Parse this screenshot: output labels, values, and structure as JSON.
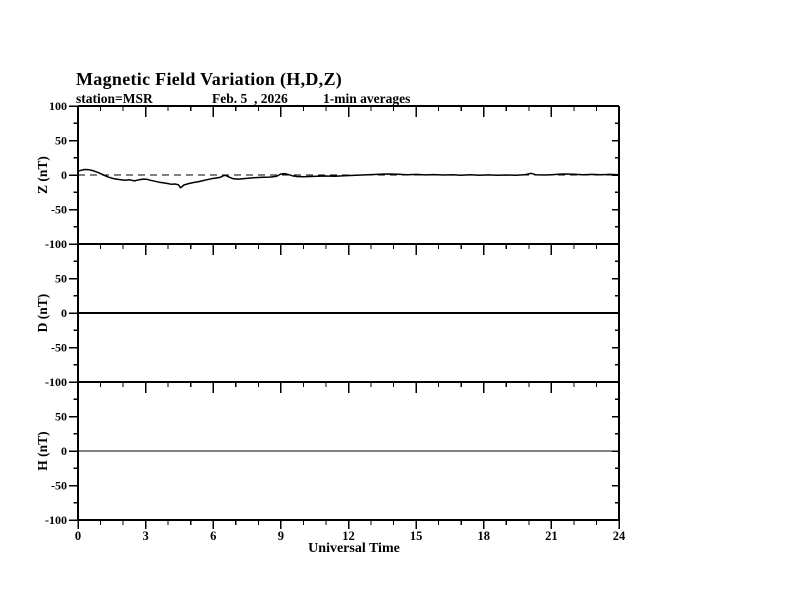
{
  "page_title": "Magnetic Field Variation (H,D,Z)",
  "colors": {
    "foreground": "#000000",
    "background": "#ffffff"
  },
  "chart_data": {
    "type": "line",
    "title": "Magnetic Field Variation (H,D,Z)",
    "subtitle": {
      "station": "station=MSR",
      "date": "Feb. 5  , 2026",
      "averaging": "1-min averages"
    },
    "xlabel": "Universal Time",
    "xlim": [
      0,
      24
    ],
    "x_major_ticks": [
      0,
      3,
      6,
      9,
      12,
      15,
      18,
      21,
      24
    ],
    "x_major_tick_labels": [
      "0",
      "3",
      "6",
      "9",
      "12",
      "15",
      "18",
      "21",
      "24"
    ],
    "x_minor_step_hours": 1,
    "y_major_step": 50,
    "y_minor_step": 25,
    "grid": false,
    "legend": "none",
    "panels": [
      {
        "id": "Z",
        "ylabel": "Z (nT)",
        "ylim": [
          -100,
          100
        ],
        "y_tick_labels": [
          {
            "v": 100,
            "t": "100"
          },
          {
            "v": 50,
            "t": "50"
          },
          {
            "v": 0,
            "t": "0"
          },
          {
            "v": -50,
            "t": "-50"
          },
          {
            "v": -100,
            "t": "-100"
          }
        ],
        "zero_line": "dashed",
        "series": {
          "name": "Z",
          "points": [
            [
              0,
              5.5
            ],
            [
              0.15,
              7
            ],
            [
              0.3,
              8
            ],
            [
              0.5,
              7.5
            ],
            [
              0.7,
              6
            ],
            [
              0.9,
              3.5
            ],
            [
              1.1,
              0.5
            ],
            [
              1.3,
              -2.5
            ],
            [
              1.6,
              -5.5
            ],
            [
              1.9,
              -7
            ],
            [
              2.1,
              -7.5
            ],
            [
              2.3,
              -7
            ],
            [
              2.5,
              -8.5
            ],
            [
              2.7,
              -7
            ],
            [
              2.9,
              -6
            ],
            [
              3.05,
              -6.2
            ],
            [
              3.2,
              -7.5
            ],
            [
              3.4,
              -9
            ],
            [
              3.6,
              -10.5
            ],
            [
              3.8,
              -11.5
            ],
            [
              4.0,
              -12.5
            ],
            [
              4.15,
              -13.5
            ],
            [
              4.3,
              -13
            ],
            [
              4.45,
              -14
            ],
            [
              4.55,
              -18.5
            ],
            [
              4.7,
              -14.5
            ],
            [
              4.9,
              -12.5
            ],
            [
              5.1,
              -11
            ],
            [
              5.3,
              -10
            ],
            [
              5.5,
              -8.5
            ],
            [
              5.7,
              -7
            ],
            [
              5.9,
              -5.5
            ],
            [
              6.1,
              -4.5
            ],
            [
              6.3,
              -3.5
            ],
            [
              6.45,
              -1
            ],
            [
              6.55,
              -0.5
            ],
            [
              6.7,
              -3
            ],
            [
              6.9,
              -5.5
            ],
            [
              7.1,
              -6
            ],
            [
              7.3,
              -5.5
            ],
            [
              7.6,
              -4.5
            ],
            [
              7.9,
              -3.8
            ],
            [
              8.2,
              -3.2
            ],
            [
              8.5,
              -3
            ],
            [
              8.8,
              -2
            ],
            [
              9.0,
              1.5
            ],
            [
              9.15,
              2
            ],
            [
              9.3,
              1
            ],
            [
              9.5,
              -1
            ],
            [
              9.7,
              -2.2
            ],
            [
              10,
              -2.5
            ],
            [
              10.3,
              -2.2
            ],
            [
              10.6,
              -1.8
            ],
            [
              11,
              -1.5
            ],
            [
              11.4,
              -1.8
            ],
            [
              11.8,
              -1.2
            ],
            [
              12.2,
              -0.6
            ],
            [
              12.6,
              0
            ],
            [
              13,
              0.6
            ],
            [
              13.4,
              1.2
            ],
            [
              13.8,
              1.5
            ],
            [
              14.2,
              1
            ],
            [
              14.6,
              0.5
            ],
            [
              15,
              0.8
            ],
            [
              15.4,
              0.2
            ],
            [
              15.8,
              0.6
            ],
            [
              16.2,
              0
            ],
            [
              16.6,
              0.4
            ],
            [
              17,
              -0.3
            ],
            [
              17.4,
              0.3
            ],
            [
              17.8,
              -0.4
            ],
            [
              18.2,
              0.2
            ],
            [
              18.6,
              -0.5
            ],
            [
              19,
              0
            ],
            [
              19.4,
              -0.4
            ],
            [
              19.8,
              0.3
            ],
            [
              20.1,
              2.5
            ],
            [
              20.3,
              0.5
            ],
            [
              20.7,
              0
            ],
            [
              21,
              0.5
            ],
            [
              21.3,
              1
            ],
            [
              21.6,
              1.5
            ],
            [
              22,
              1
            ],
            [
              22.4,
              0.5
            ],
            [
              22.8,
              0.8
            ],
            [
              23.2,
              0.4
            ],
            [
              23.6,
              0.8
            ],
            [
              24,
              0.5
            ]
          ]
        }
      },
      {
        "id": "D",
        "ylabel": "D (nT)",
        "ylim": [
          -100,
          100
        ],
        "y_tick_labels": [
          {
            "v": 50,
            "t": "50"
          },
          {
            "v": 0,
            "t": "0"
          },
          {
            "v": -50,
            "t": "-50"
          },
          {
            "v": -100,
            "t": "-100"
          }
        ],
        "zero_line": "none",
        "series": {
          "name": "D",
          "points": [
            [
              0,
              0
            ],
            [
              24,
              0
            ]
          ]
        }
      },
      {
        "id": "H",
        "ylabel": "H (nT)",
        "ylim": [
          -100,
          100
        ],
        "y_tick_labels": [
          {
            "v": 50,
            "t": "50"
          },
          {
            "v": 0,
            "t": "0"
          },
          {
            "v": -50,
            "t": "-50"
          },
          {
            "v": -100,
            "t": "-100"
          }
        ],
        "zero_line": "none",
        "series": {
          "name": "H",
          "points": [
            [
              0,
              0
            ],
            [
              24,
              0
            ]
          ]
        }
      }
    ]
  }
}
